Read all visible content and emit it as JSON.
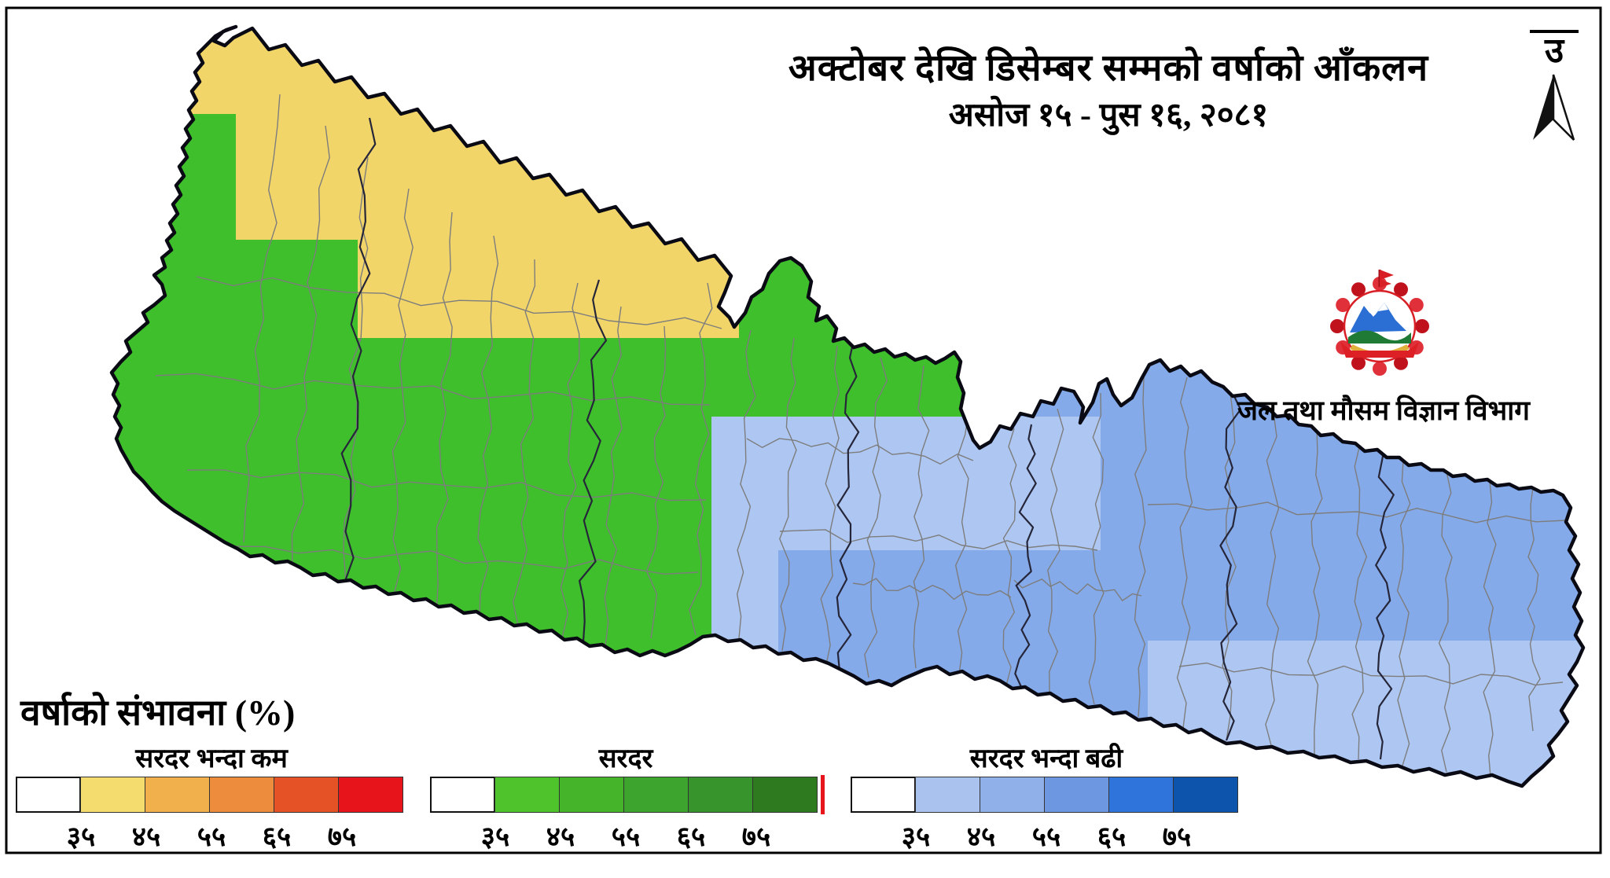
{
  "title": {
    "line1": "अक्टोबर देखि डिसेम्बर सम्मको वर्षाको आँकलन",
    "line2": "असोज १५ - पुस १६, २०८१"
  },
  "north_indicator": {
    "label": "उ"
  },
  "agency": {
    "name": "जल तथा मौसम विज्ञान विभाग"
  },
  "legend": {
    "title": "वर्षाको संभावना (%)",
    "tick_labels": [
      "३५",
      "४५",
      "५५",
      "६५",
      "७५"
    ],
    "groups": [
      {
        "id": "below-normal",
        "label": "सरदर भन्दा कम",
        "colors": [
          "#FFFFFF",
          "#F5DC6E",
          "#F2B04C",
          "#ED8C3C",
          "#E55226",
          "#E8141C"
        ]
      },
      {
        "id": "normal",
        "label": "सरदर",
        "colors": [
          "#FFFFFF",
          "#4EC32C",
          "#45B42B",
          "#3DA42E",
          "#37932B",
          "#2E7A1F"
        ],
        "end_tick_color": "#E8141C"
      },
      {
        "id": "above-normal",
        "label": "सरदर भन्दा बढी",
        "colors": [
          "#FFFFFF",
          "#A9C2EE",
          "#8FB0E8",
          "#6E97E2",
          "#2F74DB",
          "#0D55AC"
        ]
      }
    ]
  },
  "map": {
    "region": "Nepal",
    "zone_colors": {
      "below_normal": "#F2D569",
      "normal": "#3FBF2C",
      "above_normal_light": "#AEC7F2",
      "above_normal_medium": "#85AAEA"
    },
    "border_color": "#0a0a14",
    "district_line_color": "#7d7d7d",
    "province_line_color": "#26263a"
  }
}
